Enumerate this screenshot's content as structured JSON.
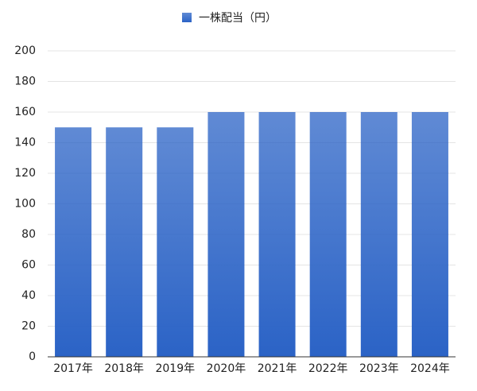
{
  "chart_data": {
    "type": "bar",
    "categories": [
      "2017年",
      "2018年",
      "2019年",
      "2020年",
      "2021年",
      "2022年",
      "2023年",
      "2024年"
    ],
    "series": [
      {
        "name": "一株配当（円）",
        "color": "#2b63c6",
        "values": [
          150,
          150,
          150,
          160,
          160,
          160,
          160,
          160
        ]
      }
    ],
    "ylim": [
      0,
      200
    ],
    "yticks": [
      0,
      20,
      40,
      60,
      80,
      100,
      120,
      140,
      160,
      180,
      200
    ],
    "grid": true,
    "legend": "top"
  }
}
